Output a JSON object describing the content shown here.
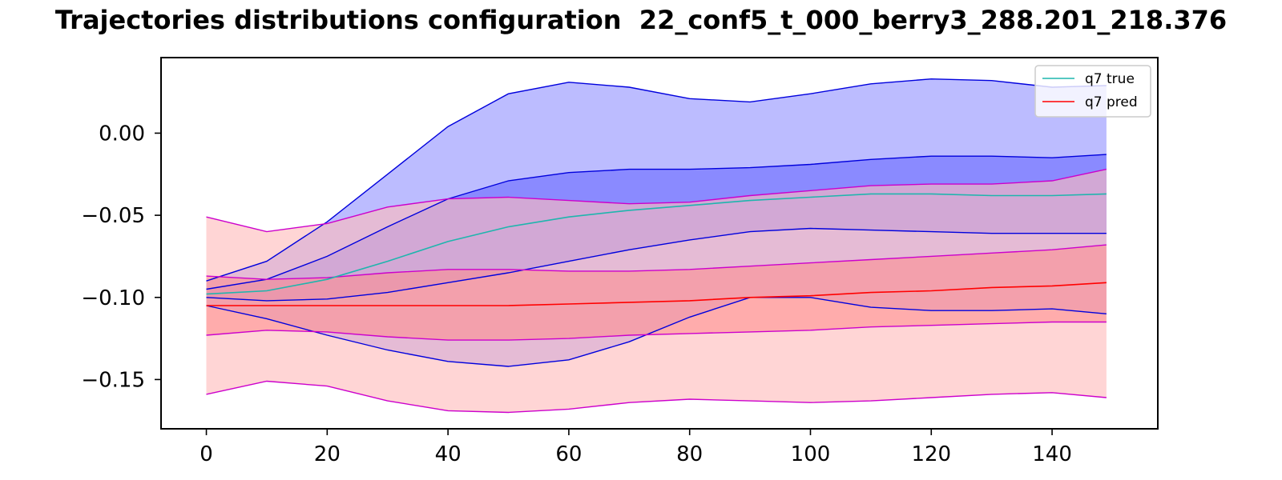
{
  "chart_data": {
    "type": "line",
    "title": "Trajectories distributions configuration  22_conf5_t_000_berry3_288.201_218.376",
    "xlabel": "",
    "ylabel": "",
    "xlim": [
      -7.5,
      157.5
    ],
    "ylim": [
      -0.18,
      0.046
    ],
    "grid": false,
    "legend_position": "top-right",
    "x_ticks": [
      0,
      20,
      40,
      60,
      80,
      100,
      120,
      140
    ],
    "x_tick_labels": [
      "0",
      "20",
      "40",
      "60",
      "80",
      "100",
      "120",
      "140"
    ],
    "y_ticks": [
      0.0,
      -0.05,
      -0.1,
      -0.15
    ],
    "y_tick_labels": [
      "0.00",
      "−0.05",
      "−0.10",
      "−0.15"
    ],
    "colors": {
      "true_line": "#1fb5ad",
      "pred_line": "#ff0000",
      "true_band_outer": "#bcbcff",
      "true_band_inner": "#8a8aff",
      "true_edge": "#0000dd",
      "pred_band_outer": "#ffbcbc",
      "pred_band_inner": "#ff8a8a",
      "pred_edge": "#cc00cc"
    },
    "x": [
      0,
      10,
      20,
      30,
      40,
      50,
      60,
      70,
      80,
      90,
      100,
      110,
      120,
      130,
      140,
      149
    ],
    "series": [
      {
        "name": "q7 true",
        "kind": "mean",
        "color": "#1fb5ad",
        "values": [
          -0.098,
          -0.096,
          -0.089,
          -0.078,
          -0.066,
          -0.057,
          -0.051,
          -0.047,
          -0.044,
          -0.041,
          -0.039,
          -0.037,
          -0.037,
          -0.038,
          -0.038,
          -0.037
        ]
      },
      {
        "name": "q7 pred",
        "kind": "mean",
        "color": "#ff0000",
        "values": [
          -0.105,
          -0.105,
          -0.105,
          -0.105,
          -0.105,
          -0.105,
          -0.104,
          -0.103,
          -0.102,
          -0.1,
          -0.099,
          -0.097,
          -0.096,
          -0.094,
          -0.093,
          -0.091
        ]
      }
    ],
    "bands": [
      {
        "group": "true",
        "level": "outer",
        "color": "#bcbcff",
        "edge": "#0000dd",
        "upper": [
          -0.09,
          -0.078,
          -0.054,
          -0.025,
          0.004,
          0.024,
          0.031,
          0.028,
          0.021,
          0.019,
          0.024,
          0.03,
          0.033,
          0.032,
          0.028,
          0.029
        ],
        "lower": [
          -0.105,
          -0.113,
          -0.123,
          -0.132,
          -0.139,
          -0.142,
          -0.138,
          -0.127,
          -0.112,
          -0.1,
          -0.1,
          -0.106,
          -0.108,
          -0.108,
          -0.107,
          -0.11
        ]
      },
      {
        "group": "true",
        "level": "inner",
        "color": "#8a8aff",
        "edge": "#0000dd",
        "upper": [
          -0.095,
          -0.089,
          -0.075,
          -0.057,
          -0.04,
          -0.029,
          -0.024,
          -0.022,
          -0.022,
          -0.021,
          -0.019,
          -0.016,
          -0.014,
          -0.014,
          -0.015,
          -0.013
        ]
      },
      {
        "group": "true",
        "level": "inner_low",
        "lower": [
          -0.1,
          -0.102,
          -0.101,
          -0.097,
          -0.091,
          -0.085,
          -0.078,
          -0.071,
          -0.065,
          -0.06,
          -0.058,
          -0.059,
          -0.06,
          -0.061,
          -0.061,
          -0.061
        ]
      },
      {
        "group": "pred",
        "level": "outer",
        "color": "#ffbcbc",
        "edge": "#cc00cc",
        "upper": [
          -0.051,
          -0.06,
          -0.055,
          -0.045,
          -0.04,
          -0.039,
          -0.041,
          -0.043,
          -0.042,
          -0.038,
          -0.035,
          -0.032,
          -0.031,
          -0.031,
          -0.029,
          -0.022
        ],
        "lower": [
          -0.159,
          -0.151,
          -0.154,
          -0.163,
          -0.169,
          -0.17,
          -0.168,
          -0.164,
          -0.162,
          -0.163,
          -0.164,
          -0.163,
          -0.161,
          -0.159,
          -0.158,
          -0.161
        ]
      },
      {
        "group": "pred",
        "level": "inner",
        "color": "#ff8a8a",
        "edge": "#cc00cc",
        "upper": [
          -0.087,
          -0.089,
          -0.088,
          -0.085,
          -0.083,
          -0.083,
          -0.084,
          -0.084,
          -0.083,
          -0.081,
          -0.079,
          -0.077,
          -0.075,
          -0.073,
          -0.071,
          -0.068
        ],
        "lower": [
          -0.123,
          -0.12,
          -0.121,
          -0.124,
          -0.126,
          -0.126,
          -0.125,
          -0.123,
          -0.122,
          -0.121,
          -0.12,
          -0.118,
          -0.117,
          -0.116,
          -0.115,
          -0.115
        ]
      }
    ],
    "legend": [
      {
        "label": "q7 true",
        "color": "#1fb5ad"
      },
      {
        "label": "q7 pred",
        "color": "#ff0000"
      }
    ]
  }
}
